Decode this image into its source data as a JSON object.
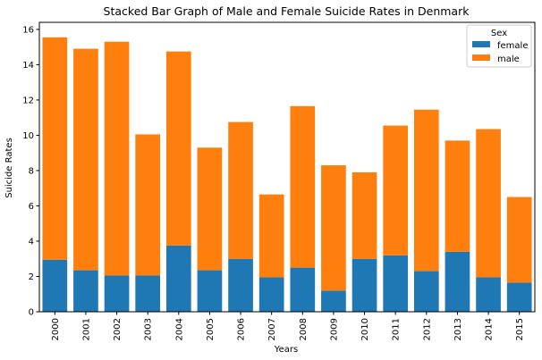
{
  "chart_data": {
    "type": "bar",
    "stacked": true,
    "title": "Stacked Bar Graph of Male and Female Suicide Rates in Denmark",
    "xlabel": "Years",
    "ylabel": "Suicide Rates",
    "ylim": [
      0,
      16.4
    ],
    "yticks": [
      0,
      2,
      4,
      6,
      8,
      10,
      12,
      14,
      16
    ],
    "categories": [
      "2000",
      "2001",
      "2002",
      "2003",
      "2004",
      "2005",
      "2006",
      "2007",
      "2008",
      "2009",
      "2010",
      "2011",
      "2012",
      "2013",
      "2014",
      "2015"
    ],
    "series": [
      {
        "name": "female",
        "color": "#1f77b4",
        "values": [
          2.95,
          2.35,
          2.05,
          2.05,
          3.75,
          2.35,
          3.0,
          1.95,
          2.5,
          1.2,
          3.0,
          3.2,
          2.3,
          3.4,
          1.95,
          1.65
        ]
      },
      {
        "name": "male",
        "color": "#ff7f0e",
        "values": [
          12.6,
          12.55,
          13.25,
          8.0,
          11.0,
          6.95,
          7.75,
          4.7,
          9.15,
          7.1,
          4.9,
          7.35,
          9.15,
          6.3,
          8.4,
          4.85
        ]
      }
    ],
    "legend": {
      "title": "Sex",
      "position": "top-right"
    }
  }
}
